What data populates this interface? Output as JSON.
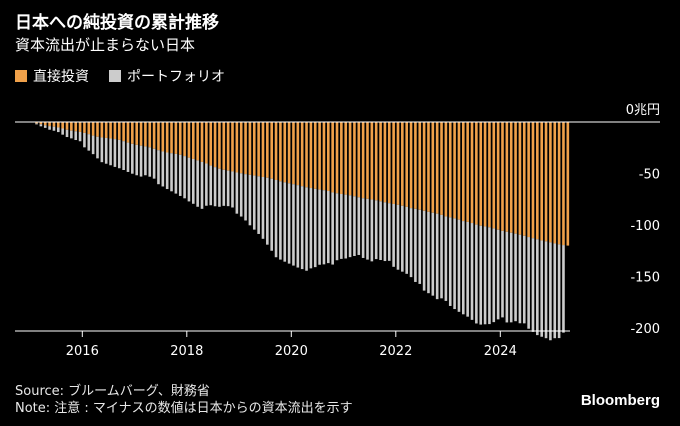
{
  "title": "日本への純投資の累計推移",
  "subtitle": "資本流出が止まらない日本",
  "legend": [
    {
      "label": "直接投資",
      "color": "#f0a14a"
    },
    {
      "label": "ポートフォリオ",
      "color": "#cccccc"
    }
  ],
  "footer": {
    "source": "Source: ブルームバーグ、財務省",
    "note": "Note: 注意 : マイナスの数値は日本からの資本流出を示す",
    "brand": "Bloomberg"
  },
  "chart_data": {
    "type": "bar",
    "stacked": true,
    "unit": "兆円",
    "ylim": [
      -215,
      0
    ],
    "yticks": [
      0,
      -50,
      -100,
      -150,
      -200
    ],
    "ytick_labels": [
      "0兆円",
      "-50",
      "-100",
      "-150",
      "-200"
    ],
    "xticks": [
      "2016",
      "2018",
      "2020",
      "2022",
      "2024"
    ],
    "x_start": "2015-01",
    "x_end": "2025-03",
    "frequency": "monthly",
    "series": [
      {
        "name": "直接投資",
        "color": "#f0a14a",
        "values": [
          -0.5,
          -1.3,
          -2.2,
          -3.2,
          -4.0,
          -4.5,
          -5.3,
          -6.3,
          -7.6,
          -8.4,
          -9.0,
          -9.7,
          -10.6,
          -11.8,
          -13.2,
          -14.3,
          -15.0,
          -15.5,
          -16.0,
          -16.6,
          -17.4,
          -18.6,
          -20.0,
          -21.2,
          -22.2,
          -23.0,
          -23.7,
          -24.6,
          -26.0,
          -27.4,
          -28.6,
          -29.6,
          -30.3,
          -31.0,
          -31.8,
          -33.1,
          -34.6,
          -35.9,
          -37.3,
          -38.8,
          -40.3,
          -42.3,
          -43.8,
          -45.3,
          -46.4,
          -47.2,
          -48.0,
          -49.0,
          -49.8,
          -50.6,
          -51.3,
          -52.0,
          -52.7,
          -53.4,
          -54.1,
          -55.0,
          -56.3,
          -57.6,
          -58.6,
          -59.5,
          -60.4,
          -61.3,
          -62.3,
          -63.4,
          -64.1,
          -64.9,
          -65.6,
          -66.2,
          -67.0,
          -68.4,
          -69.2,
          -69.9,
          -70.5,
          -71.2,
          -72.1,
          -73.1,
          -74.0,
          -74.6,
          -75.3,
          -76.1,
          -77.0,
          -78.0,
          -78.8,
          -79.6,
          -80.4,
          -81.3,
          -82.4,
          -83.6,
          -84.3,
          -85.2,
          -86.2,
          -87.2,
          -88.1,
          -89.0,
          -90.2,
          -91.7,
          -92.6,
          -93.6,
          -94.8,
          -96.2,
          -97.0,
          -98.1,
          -99.6,
          -100.7,
          -101.4,
          -102.2,
          -103.3,
          -104.6,
          -105.7,
          -106.6,
          -107.5,
          -108.4,
          -109.4,
          -110.5,
          -111.7,
          -112.8,
          -113.9,
          -115.0,
          -115.9,
          -116.9,
          -117.9,
          -118.8,
          -119.5,
          -120.0
        ]
      },
      {
        "name": "ポートフォリオ",
        "color": "#cccccc",
        "values": [
          0,
          -1,
          -2,
          -2.5,
          -3.5,
          -4,
          -4.5,
          -6,
          -7,
          -7.5,
          -8.5,
          -9,
          -14,
          -16,
          -18,
          -21,
          -24,
          -25,
          -26,
          -27,
          -27.5,
          -28,
          -28.5,
          -29,
          -29.5,
          -30,
          -28,
          -28.5,
          -29,
          -33,
          -34,
          -35.5,
          -37,
          -38.5,
          -40,
          -41,
          -42.5,
          -43.5,
          -45,
          -45.5,
          -41,
          -38.5,
          -38,
          -37,
          -35,
          -34.5,
          -35,
          -40,
          -42,
          -45,
          -49,
          -52.5,
          -56,
          -60,
          -65,
          -70,
          -75,
          -76,
          -77,
          -78,
          -79,
          -80,
          -80.5,
          -81,
          -78,
          -76,
          -73,
          -72,
          -70,
          -70,
          -65,
          -63,
          -62,
          -60,
          -58,
          -56,
          -58,
          -59,
          -60,
          -57,
          -57,
          -57,
          -56,
          -61,
          -63,
          -64,
          -65,
          -67,
          -71,
          -72,
          -77.5,
          -79,
          -80.5,
          -83,
          -81,
          -82,
          -86,
          -88,
          -89.5,
          -90.5,
          -92,
          -94,
          -96,
          -96,
          -95,
          -94,
          -91,
          -87,
          -84,
          -88,
          -87,
          -85,
          -86,
          -85,
          -89,
          -91,
          -93,
          -93.5,
          -94,
          -95,
          -92,
          -91,
          -85
        ]
      }
    ]
  }
}
